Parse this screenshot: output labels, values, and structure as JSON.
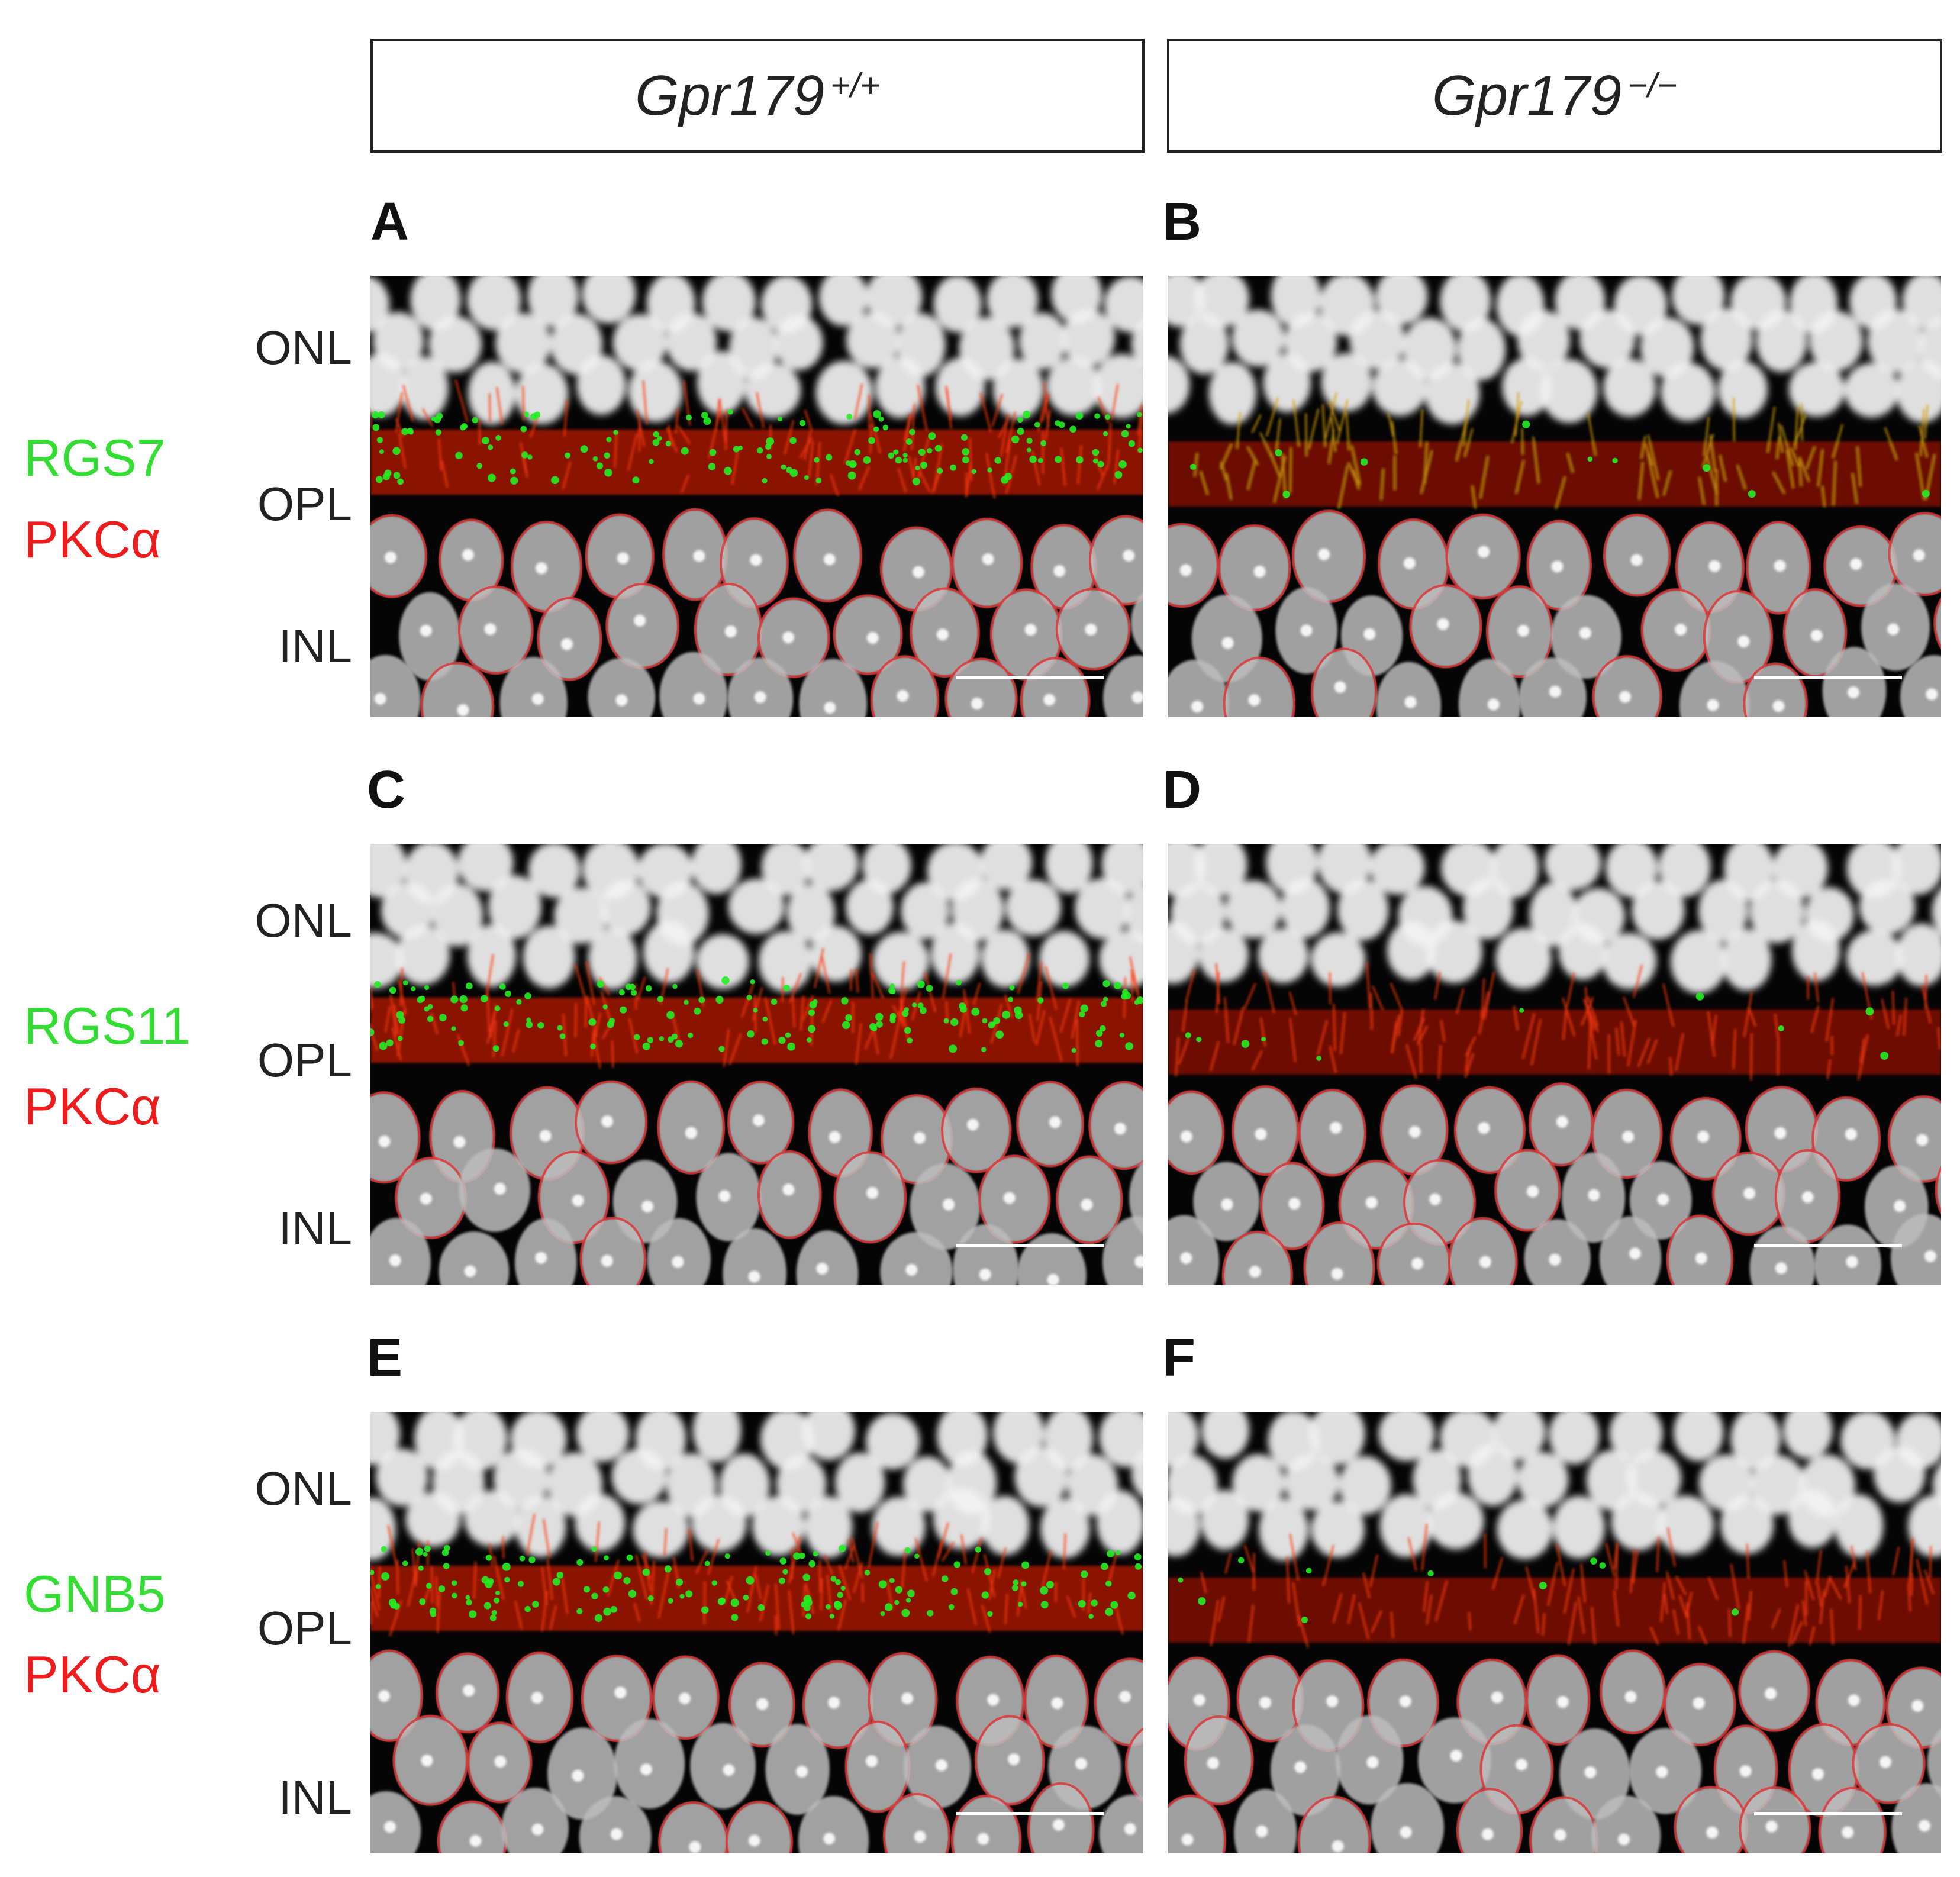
{
  "genotypes": [
    {
      "base": "Gpr179",
      "sup": "+/+"
    },
    {
      "base": "Gpr179",
      "sup": "−/−"
    }
  ],
  "layers": {
    "onl": "ONL",
    "opl": "OPL",
    "inl": "INL"
  },
  "rows": [
    {
      "green": "RGS7",
      "red": "PKCα",
      "panels": [
        "A",
        "B"
      ]
    },
    {
      "green": "RGS11",
      "red": "PKCα",
      "panels": [
        "C",
        "D"
      ]
    },
    {
      "green": "GNB5",
      "red": "PKCα",
      "panels": [
        "E",
        "F"
      ]
    }
  ],
  "colors": {
    "green_label": "#33dd33",
    "red_label": "#ee1c1c",
    "nuclei": "#e8e8e8",
    "pkc": "#e01a10",
    "puncta": "#22ee22"
  }
}
